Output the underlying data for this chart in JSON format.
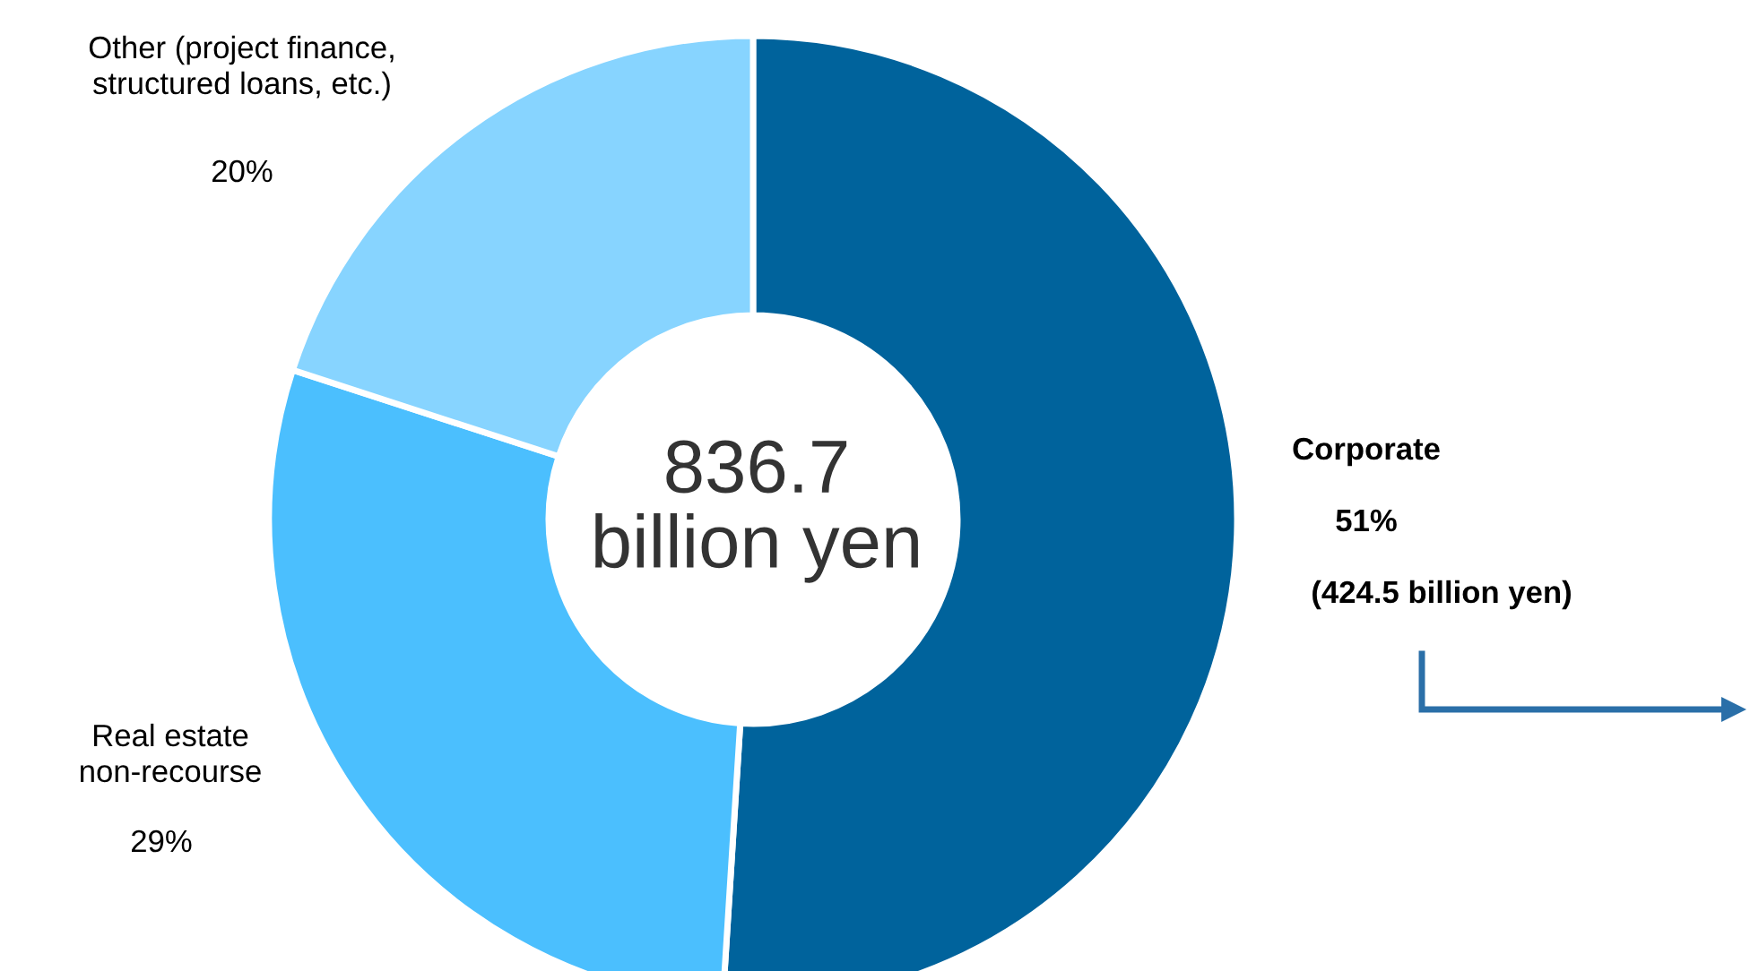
{
  "chart_data": {
    "type": "donut",
    "categories": [
      "Corporate",
      "Real estate\nnon-recourse",
      "Other (project finance,\nstructured loans, etc.)"
    ],
    "values": [
      51,
      29,
      20
    ],
    "colors": [
      "#00639c",
      "#4bbffe",
      "#87d4ff"
    ],
    "value_labels": [
      "51%",
      "29%",
      "20%"
    ],
    "annotations": [
      "836.7\nbillion yen",
      "(424.5 billion yen)"
    ]
  }
}
